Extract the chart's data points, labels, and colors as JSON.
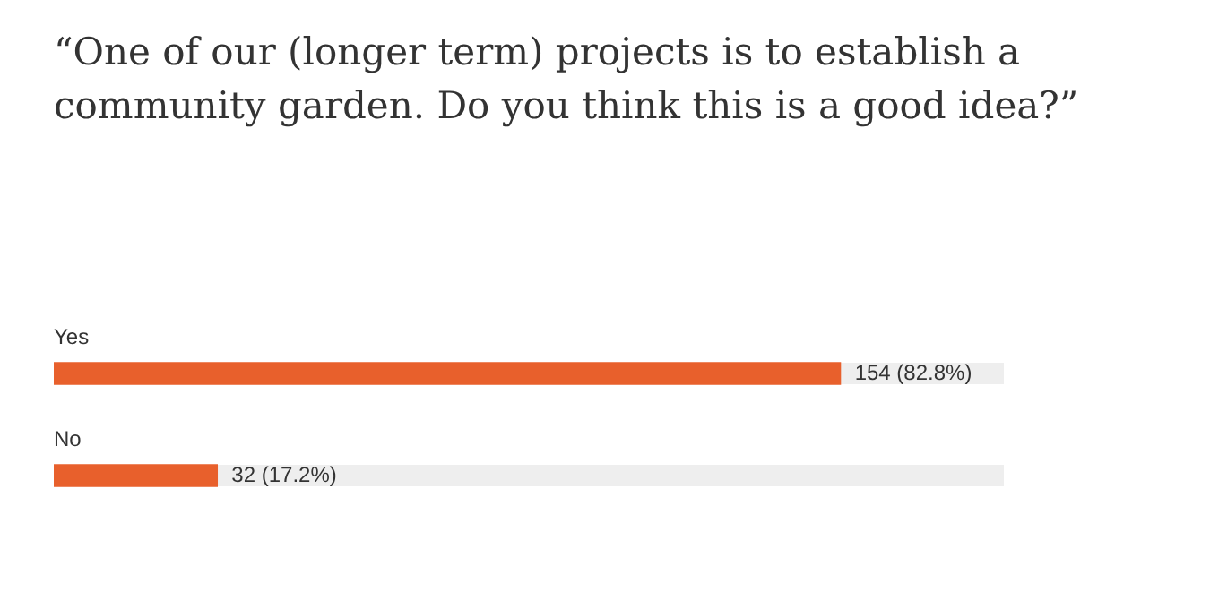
{
  "chart_data": {
    "type": "bar",
    "orientation": "horizontal",
    "title": "“One of our (longer term) projects is to establish a community garden. Do you think this is a good idea?”",
    "categories": [
      "Yes",
      "No"
    ],
    "values": [
      154,
      32
    ],
    "value_labels": [
      "154 (82.8%)",
      "32 (17.2%)"
    ],
    "color": "#e8602c",
    "xlim": [
      0,
      186
    ],
    "tick_labels": false,
    "legend": false
  }
}
